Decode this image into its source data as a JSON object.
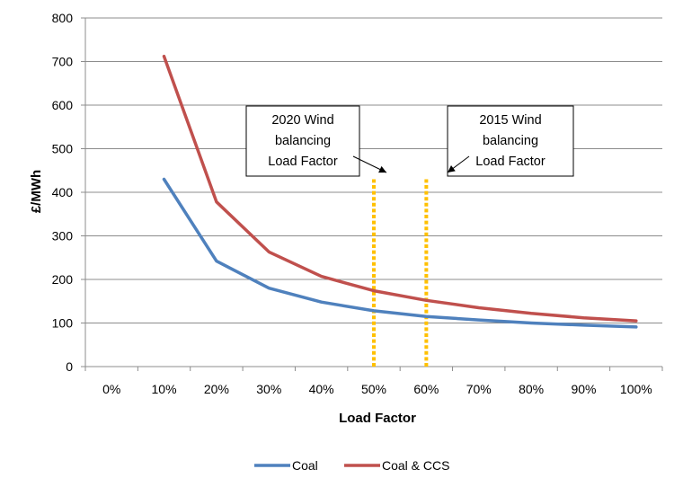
{
  "chart_data": {
    "type": "line",
    "title": "",
    "xlabel": "Load Factor",
    "ylabel": "£/MWh",
    "categories": [
      "0%",
      "10%",
      "20%",
      "30%",
      "40%",
      "50%",
      "60%",
      "70%",
      "80%",
      "90%",
      "100%"
    ],
    "x": [
      0,
      10,
      20,
      30,
      40,
      50,
      60,
      70,
      80,
      90,
      100
    ],
    "ylim": [
      0,
      800
    ],
    "yticks": [
      0,
      100,
      200,
      300,
      400,
      500,
      600,
      700,
      800
    ],
    "yticklabels": [
      "0",
      "100",
      "200",
      "300",
      "400",
      "500",
      "600",
      "700",
      "800"
    ],
    "grid": "horizontal",
    "legend": "bottom",
    "series": [
      {
        "name": "Coal",
        "color": "#4f81bd",
        "values": [
          null,
          430,
          242,
          180,
          148,
          128,
          115,
          107,
          100,
          95,
          91
        ]
      },
      {
        "name": "Coal & CCS",
        "color": "#c0504d",
        "values": [
          null,
          712,
          378,
          263,
          207,
          174,
          152,
          135,
          122,
          112,
          105
        ]
      }
    ],
    "vlines": [
      {
        "x": 50,
        "y_top": 430,
        "color": "#ffc000"
      },
      {
        "x": 60,
        "y_top": 430,
        "color": "#ffc000"
      }
    ],
    "annotations": [
      {
        "lines": [
          "2020 Wind",
          "balancing",
          "Load Factor"
        ],
        "arrow_to_x": 50
      },
      {
        "lines": [
          "2015 Wind",
          "balancing",
          "Load Factor"
        ],
        "arrow_to_x": 60
      }
    ]
  }
}
